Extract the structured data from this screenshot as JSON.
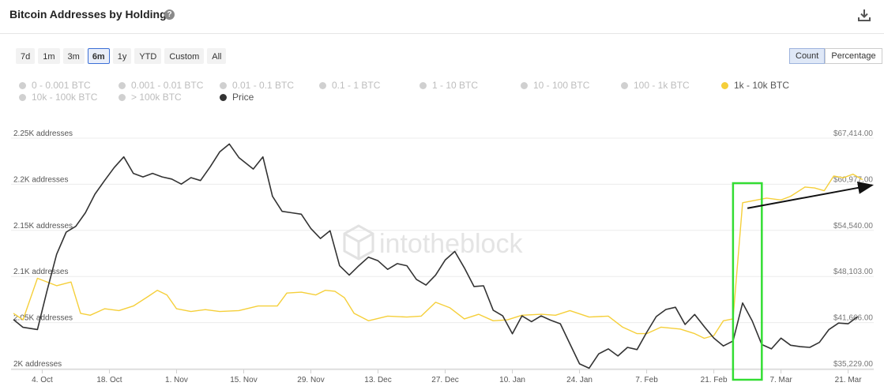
{
  "header": {
    "title": "Bitcoin Addresses by Holdings",
    "help_icon": "question-circle-icon",
    "download_icon": "download-icon"
  },
  "range_buttons": [
    "7d",
    "1m",
    "3m",
    "6m",
    "1y",
    "YTD",
    "Custom",
    "All"
  ],
  "range_active": "6m",
  "mode_buttons": [
    "Count",
    "Percentage"
  ],
  "mode_active": "Count",
  "watermark": "intotheblock",
  "colors": {
    "series_1k_10k": "#f5cf3a",
    "price": "#333333",
    "highlight_box": "#33dd33",
    "arrow": "#111111",
    "legend_inactive": "#d0d0d0",
    "grid": "#ececec"
  },
  "legend": [
    {
      "label": "0 - 0.001 BTC",
      "active": false
    },
    {
      "label": "0.001 - 0.01 BTC",
      "active": false
    },
    {
      "label": "0.01 - 0.1 BTC",
      "active": false
    },
    {
      "label": "0.1 - 1 BTC",
      "active": false
    },
    {
      "label": "1 - 10 BTC",
      "active": false
    },
    {
      "label": "10 - 100 BTC",
      "active": false
    },
    {
      "label": "100 - 1k BTC",
      "active": false
    },
    {
      "label": "1k - 10k BTC",
      "active": true,
      "color": "#f5cf3a"
    },
    {
      "label": "10k - 100k BTC",
      "active": false
    },
    {
      "label": "> 100k BTC",
      "active": false
    },
    {
      "label": "Price",
      "active": true,
      "color": "#333333"
    }
  ],
  "chart_data": {
    "type": "line",
    "title": "Bitcoin Addresses by Holdings",
    "x_ticks": [
      "4. Oct",
      "18. Oct",
      "1. Nov",
      "15. Nov",
      "29. Nov",
      "13. Dec",
      "27. Dec",
      "10. Jan",
      "24. Jan",
      "7. Feb",
      "21. Feb",
      "7. Mar",
      "21. Mar"
    ],
    "x_tick_index": [
      6,
      20,
      34,
      48,
      62,
      76,
      90,
      104,
      118,
      132,
      146,
      160,
      174
    ],
    "y_left_ticks": [
      "2.25K addresses",
      "2.2K addresses",
      "2.15K addresses",
      "2.1K addresses",
      "2.05K addresses",
      "2K addresses"
    ],
    "y_left_range": [
      2000,
      2250
    ],
    "y_right_ticks": [
      "$67,414.00",
      "$60,977.00",
      "$54,540.00",
      "$48,103.00",
      "$41,666.00",
      "$35,229.00"
    ],
    "y_right_range": [
      35229,
      67414
    ],
    "grid": true,
    "legend_position": "top",
    "series": [
      {
        "name": "1k - 10k BTC",
        "axis": "left",
        "color": "#f5cf3a",
        "anchors": [
          [
            0,
            2060
          ],
          [
            2,
            2053
          ],
          [
            5,
            2098
          ],
          [
            9,
            2090
          ],
          [
            12,
            2094
          ],
          [
            14,
            2060
          ],
          [
            16,
            2058
          ],
          [
            19,
            2065
          ],
          [
            22,
            2063
          ],
          [
            25,
            2068
          ],
          [
            28,
            2078
          ],
          [
            30,
            2085
          ],
          [
            32,
            2080
          ],
          [
            34,
            2065
          ],
          [
            37,
            2062
          ],
          [
            40,
            2064
          ],
          [
            43,
            2062
          ],
          [
            47,
            2063
          ],
          [
            51,
            2068
          ],
          [
            55,
            2068
          ],
          [
            57,
            2082
          ],
          [
            60,
            2083
          ],
          [
            63,
            2080
          ],
          [
            65,
            2085
          ],
          [
            67,
            2084
          ],
          [
            69,
            2077
          ],
          [
            71,
            2060
          ],
          [
            74,
            2052
          ],
          [
            78,
            2057
          ],
          [
            82,
            2056
          ],
          [
            85,
            2057
          ],
          [
            88,
            2072
          ],
          [
            91,
            2066
          ],
          [
            94,
            2054
          ],
          [
            97,
            2059
          ],
          [
            100,
            2052
          ],
          [
            103,
            2053
          ],
          [
            106,
            2058
          ],
          [
            110,
            2059
          ],
          [
            113,
            2058
          ],
          [
            116,
            2063
          ],
          [
            120,
            2056
          ],
          [
            124,
            2057
          ],
          [
            127,
            2045
          ],
          [
            130,
            2038
          ],
          [
            132,
            2038
          ],
          [
            135,
            2045
          ],
          [
            139,
            2043
          ],
          [
            142,
            2038
          ],
          [
            144,
            2033
          ],
          [
            146,
            2036
          ],
          [
            148,
            2052
          ],
          [
            150,
            2054
          ],
          [
            152,
            2180
          ],
          [
            154,
            2182
          ],
          [
            157,
            2185
          ],
          [
            160,
            2183
          ],
          [
            162,
            2187
          ],
          [
            165,
            2197
          ],
          [
            167,
            2196
          ],
          [
            169,
            2193
          ],
          [
            171,
            2209
          ],
          [
            173,
            2207
          ],
          [
            175,
            2211
          ],
          [
            177,
            2205
          ]
        ]
      },
      {
        "name": "Price",
        "axis": "right",
        "color": "#333333",
        "anchors": [
          [
            0,
            42100
          ],
          [
            2,
            41000
          ],
          [
            5,
            40700
          ],
          [
            7,
            46100
          ],
          [
            9,
            51200
          ],
          [
            11,
            54300
          ],
          [
            13,
            55100
          ],
          [
            15,
            57000
          ],
          [
            17,
            59600
          ],
          [
            19,
            61500
          ],
          [
            21,
            63300
          ],
          [
            23,
            64800
          ],
          [
            25,
            62500
          ],
          [
            27,
            62000
          ],
          [
            29,
            62500
          ],
          [
            31,
            62000
          ],
          [
            33,
            61700
          ],
          [
            35,
            61000
          ],
          [
            37,
            61900
          ],
          [
            39,
            61500
          ],
          [
            41,
            63400
          ],
          [
            43,
            65500
          ],
          [
            45,
            66600
          ],
          [
            47,
            64700
          ],
          [
            50,
            63100
          ],
          [
            52,
            64800
          ],
          [
            54,
            59300
          ],
          [
            56,
            57200
          ],
          [
            58,
            57000
          ],
          [
            60,
            56800
          ],
          [
            62,
            54800
          ],
          [
            64,
            53400
          ],
          [
            66,
            54500
          ],
          [
            68,
            49600
          ],
          [
            70,
            48300
          ],
          [
            72,
            49600
          ],
          [
            74,
            50800
          ],
          [
            76,
            50300
          ],
          [
            78,
            49100
          ],
          [
            80,
            49900
          ],
          [
            82,
            49600
          ],
          [
            84,
            47700
          ],
          [
            86,
            46900
          ],
          [
            88,
            48300
          ],
          [
            90,
            50400
          ],
          [
            92,
            51600
          ],
          [
            94,
            49300
          ],
          [
            96,
            46700
          ],
          [
            98,
            46800
          ],
          [
            100,
            43400
          ],
          [
            102,
            42600
          ],
          [
            104,
            40100
          ],
          [
            106,
            42600
          ],
          [
            108,
            41800
          ],
          [
            110,
            42600
          ],
          [
            112,
            42000
          ],
          [
            114,
            41500
          ],
          [
            116,
            38700
          ],
          [
            118,
            35900
          ],
          [
            120,
            35300
          ],
          [
            122,
            37300
          ],
          [
            124,
            38000
          ],
          [
            126,
            37000
          ],
          [
            128,
            38200
          ],
          [
            130,
            37900
          ],
          [
            132,
            40300
          ],
          [
            134,
            42500
          ],
          [
            136,
            43500
          ],
          [
            138,
            43800
          ],
          [
            140,
            41400
          ],
          [
            142,
            42800
          ],
          [
            144,
            41100
          ],
          [
            146,
            39500
          ],
          [
            148,
            38400
          ],
          [
            150,
            39100
          ],
          [
            152,
            44400
          ],
          [
            154,
            41900
          ],
          [
            156,
            38600
          ],
          [
            158,
            38000
          ],
          [
            160,
            39500
          ],
          [
            162,
            38500
          ],
          [
            164,
            38300
          ],
          [
            166,
            38200
          ],
          [
            168,
            38900
          ],
          [
            170,
            40700
          ],
          [
            172,
            41600
          ],
          [
            174,
            41500
          ],
          [
            176,
            42500
          ]
        ]
      }
    ]
  },
  "annotations": {
    "highlight_box_index": [
      150,
      156
    ],
    "arrow_from": {
      "index": 153,
      "left_value": 2174
    },
    "arrow_to": {
      "index": 179,
      "left_value": 2199
    }
  }
}
